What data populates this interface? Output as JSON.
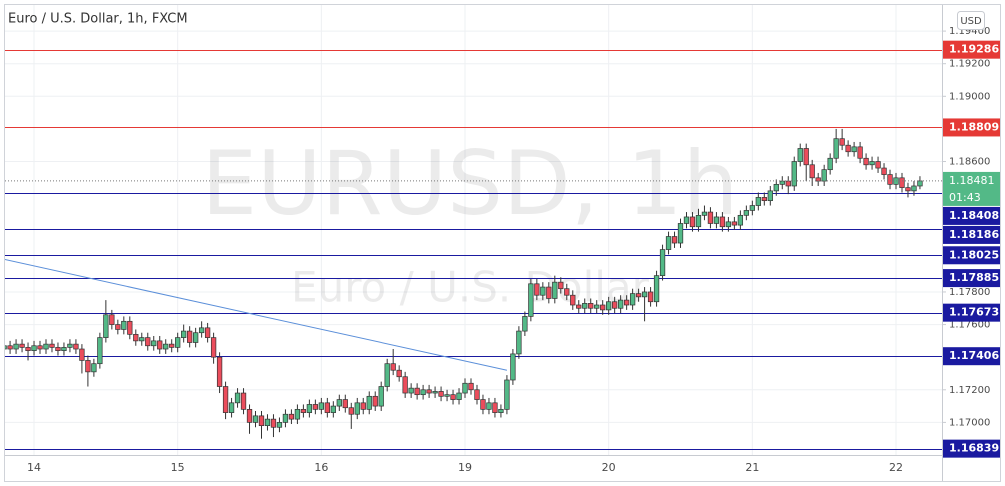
{
  "chart_data": {
    "type": "candlestick",
    "title": "Euro / U.S. Dollar, 1h, FXCM",
    "watermark": "EURUSD, 1h",
    "watermark_subtitle": "Euro / U.S. Dollar",
    "currency": "USD",
    "countdown": "01:43",
    "categories": [
      null,
      null,
      null,
      null,
      null,
      "14",
      null,
      null,
      null,
      null,
      null,
      null,
      null,
      null,
      null,
      null,
      null,
      null,
      null,
      null,
      null,
      null,
      null,
      null,
      null,
      null,
      null,
      null,
      null,
      "15",
      null,
      null,
      null,
      null,
      null,
      null,
      null,
      null,
      null,
      null,
      null,
      null,
      null,
      null,
      null,
      null,
      null,
      null,
      null,
      null,
      null,
      null,
      null,
      "16",
      null,
      null,
      null,
      null,
      null,
      null,
      null,
      null,
      null,
      null,
      null,
      null,
      null,
      null,
      null,
      null,
      null,
      null,
      null,
      null,
      null,
      null,
      null,
      "19",
      null,
      null,
      null,
      null,
      null,
      null,
      null,
      null,
      null,
      null,
      null,
      null,
      null,
      null,
      null,
      null,
      null,
      null,
      null,
      null,
      null,
      null,
      null,
      "20",
      null,
      null,
      null,
      null,
      null,
      null,
      null,
      null,
      null,
      null,
      null,
      null,
      null,
      null,
      null,
      null,
      null,
      null,
      null,
      null,
      null,
      null,
      null,
      "21",
      null,
      null,
      null,
      null,
      null,
      null,
      null,
      null,
      null,
      null,
      null,
      null,
      null,
      null,
      null,
      null,
      null,
      null,
      null,
      null,
      null,
      null,
      null,
      "22",
      null,
      null,
      null,
      null
    ],
    "open": [
      1.1745,
      1.1747,
      1.1745,
      1.1748,
      1.1746,
      1.1744,
      1.1747,
      1.1745,
      1.1748,
      1.1746,
      1.1744,
      1.1746,
      1.1748,
      1.1745,
      1.1738,
      1.1731,
      1.1736,
      1.1752,
      1.1766,
      1.176,
      1.1757,
      1.1762,
      1.1754,
      1.175,
      1.1752,
      1.1747,
      1.175,
      1.1745,
      1.1748,
      1.1746,
      1.1752,
      1.1756,
      1.1749,
      1.1755,
      1.1758,
      1.1752,
      1.174,
      1.1722,
      1.1706,
      1.1712,
      1.1718,
      1.1708,
      1.17,
      1.1704,
      1.1698,
      1.1702,
      1.1697,
      1.17,
      1.1705,
      1.1702,
      1.1708,
      1.1706,
      1.1711,
      1.1708,
      1.1712,
      1.1706,
      1.171,
      1.1714,
      1.1709,
      1.1705,
      1.1712,
      1.1708,
      1.1716,
      1.171,
      1.1722,
      1.1736,
      1.1732,
      1.1728,
      1.1718,
      1.1721,
      1.1717,
      1.172,
      1.1718,
      1.1719,
      1.1716,
      1.1717,
      1.1714,
      1.1718,
      1.1724,
      1.172,
      1.1714,
      1.1708,
      1.1712,
      1.1706,
      1.1708,
      1.1726,
      1.1742,
      1.1756,
      1.1765,
      1.1785,
      1.1778,
      1.1783,
      1.1776,
      1.1786,
      1.1782,
      1.1778,
      1.1772,
      1.177,
      1.1773,
      1.177,
      1.1772,
      1.1769,
      1.1774,
      1.177,
      1.1775,
      1.1772,
      1.1779,
      1.1777,
      1.178,
      1.1774,
      1.179,
      1.1806,
      1.1814,
      1.181,
      1.1822,
      1.1826,
      1.182,
      1.1827,
      1.1829,
      1.1822,
      1.1826,
      1.182,
      1.1823,
      1.1821,
      1.1827,
      1.183,
      1.1833,
      1.1838,
      1.1836,
      1.1842,
      1.1846,
      1.1848,
      1.1845,
      1.186,
      1.1868,
      1.1858,
      1.185,
      1.1848,
      1.1855,
      1.1862,
      1.1874,
      1.187,
      1.1866,
      1.1869,
      1.1862,
      1.1858,
      1.186,
      1.1856,
      1.1852,
      1.1846,
      1.185,
      1.1844,
      1.1842,
      1.1845
    ],
    "high": [
      1.175,
      1.175,
      1.1751,
      1.1751,
      1.1749,
      1.175,
      1.175,
      1.1751,
      1.1751,
      1.1749,
      1.1749,
      1.1751,
      1.1751,
      1.1748,
      1.1741,
      1.1739,
      1.1755,
      1.1775,
      1.1769,
      1.1763,
      1.1765,
      1.1765,
      1.1757,
      1.1755,
      1.1755,
      1.1753,
      1.1753,
      1.1751,
      1.1751,
      1.1755,
      1.176,
      1.1759,
      1.1758,
      1.1762,
      1.1761,
      1.1755,
      1.1743,
      1.1725,
      1.1715,
      1.1721,
      1.1721,
      1.1711,
      1.1707,
      1.1707,
      1.1705,
      1.1705,
      1.1703,
      1.1708,
      1.1708,
      1.1711,
      1.1711,
      1.1714,
      1.1714,
      1.1715,
      1.1715,
      1.1713,
      1.1717,
      1.1717,
      1.1712,
      1.1715,
      1.1715,
      1.1719,
      1.1719,
      1.1725,
      1.1739,
      1.1745,
      1.1735,
      1.1731,
      1.1724,
      1.1724,
      1.1723,
      1.1723,
      1.1722,
      1.1722,
      1.172,
      1.172,
      1.1721,
      1.1727,
      1.1727,
      1.1723,
      1.1717,
      1.1715,
      1.1715,
      1.1711,
      1.1729,
      1.1745,
      1.1759,
      1.1768,
      1.1788,
      1.1788,
      1.1786,
      1.1786,
      1.179,
      1.1789,
      1.1785,
      1.1781,
      1.1775,
      1.1776,
      1.1776,
      1.1775,
      1.1775,
      1.1777,
      1.1777,
      1.1778,
      1.1778,
      1.1782,
      1.1782,
      1.1783,
      1.1783,
      1.1793,
      1.1809,
      1.1817,
      1.1817,
      1.1825,
      1.1829,
      1.1829,
      1.1831,
      1.1833,
      1.1832,
      1.1829,
      1.1829,
      1.1826,
      1.1826,
      1.183,
      1.1833,
      1.1836,
      1.1841,
      1.1841,
      1.1845,
      1.1849,
      1.1851,
      1.1851,
      1.1863,
      1.1871,
      1.1871,
      1.1861,
      1.1853,
      1.1858,
      1.1865,
      1.188,
      1.188,
      1.1873,
      1.1872,
      1.1872,
      1.1865,
      1.1863,
      1.1863,
      1.1859,
      1.1855,
      1.1853,
      1.1853,
      1.1847,
      1.1848,
      1.1851
    ],
    "low": [
      1.1742,
      1.1742,
      1.1742,
      1.1743,
      1.1738,
      1.1741,
      1.1742,
      1.1742,
      1.1743,
      1.1741,
      1.1741,
      1.1743,
      1.1742,
      1.173,
      1.1722,
      1.1728,
      1.1733,
      1.1749,
      1.1757,
      1.1754,
      1.1754,
      1.1751,
      1.1747,
      1.1747,
      1.1744,
      1.1744,
      1.1742,
      1.1742,
      1.1743,
      1.1743,
      1.1749,
      1.1746,
      1.1746,
      1.1752,
      1.1749,
      1.1736,
      1.1718,
      1.1702,
      1.1703,
      1.1709,
      1.1705,
      1.1693,
      1.1697,
      1.169,
      1.1695,
      1.1691,
      1.1694,
      1.1697,
      1.1699,
      1.1699,
      1.1703,
      1.1703,
      1.1705,
      1.1705,
      1.1703,
      1.1703,
      1.1707,
      1.1706,
      1.1696,
      1.1702,
      1.1705,
      1.1705,
      1.1707,
      1.1707,
      1.1719,
      1.1729,
      1.1725,
      1.1715,
      1.1715,
      1.1714,
      1.1714,
      1.1715,
      1.1715,
      1.1713,
      1.1713,
      1.1711,
      1.1711,
      1.1715,
      1.1717,
      1.1711,
      1.1705,
      1.1705,
      1.1703,
      1.1703,
      1.1705,
      1.1723,
      1.1739,
      1.1753,
      1.1762,
      1.1775,
      1.1775,
      1.1773,
      1.1773,
      1.1779,
      1.1775,
      1.1769,
      1.1767,
      1.1767,
      1.1767,
      1.1767,
      1.1766,
      1.1766,
      1.1767,
      1.1767,
      1.1769,
      1.1769,
      1.1774,
      1.1762,
      1.1771,
      1.1771,
      1.1787,
      1.1803,
      1.1807,
      1.1807,
      1.1819,
      1.1817,
      1.1817,
      1.1824,
      1.1819,
      1.1819,
      1.1817,
      1.1817,
      1.1818,
      1.1818,
      1.1824,
      1.1827,
      1.183,
      1.1833,
      1.1833,
      1.1839,
      1.1843,
      1.184,
      1.1842,
      1.1857,
      1.1848,
      1.1845,
      1.1845,
      1.1845,
      1.1852,
      1.1859,
      1.1867,
      1.1863,
      1.1863,
      1.1859,
      1.1855,
      1.1855,
      1.1853,
      1.1849,
      1.1843,
      1.1843,
      1.1841,
      1.1838,
      1.1839,
      1.1843
    ],
    "close": [
      1.1747,
      1.1745,
      1.1748,
      1.1746,
      1.1744,
      1.1747,
      1.1745,
      1.1748,
      1.1746,
      1.1744,
      1.1746,
      1.1748,
      1.1745,
      1.1738,
      1.1731,
      1.1736,
      1.1752,
      1.1766,
      1.176,
      1.1757,
      1.1762,
      1.1754,
      1.175,
      1.1752,
      1.1747,
      1.175,
      1.1745,
      1.1748,
      1.1746,
      1.1752,
      1.1756,
      1.1749,
      1.1755,
      1.1758,
      1.1752,
      1.174,
      1.1722,
      1.1706,
      1.1712,
      1.1718,
      1.1708,
      1.17,
      1.1704,
      1.1698,
      1.1702,
      1.1697,
      1.17,
      1.1705,
      1.1702,
      1.1708,
      1.1706,
      1.1711,
      1.1708,
      1.1712,
      1.1706,
      1.171,
      1.1714,
      1.1709,
      1.1705,
      1.1712,
      1.1708,
      1.1716,
      1.171,
      1.1722,
      1.1736,
      1.1732,
      1.1728,
      1.1718,
      1.1721,
      1.1717,
      1.172,
      1.1718,
      1.1719,
      1.1716,
      1.1717,
      1.1714,
      1.1718,
      1.1724,
      1.172,
      1.1714,
      1.1708,
      1.1712,
      1.1706,
      1.1708,
      1.1726,
      1.1742,
      1.1756,
      1.1765,
      1.1785,
      1.1778,
      1.1783,
      1.1776,
      1.1786,
      1.1782,
      1.1778,
      1.1772,
      1.177,
      1.1773,
      1.177,
      1.1772,
      1.1769,
      1.1774,
      1.177,
      1.1775,
      1.1772,
      1.1779,
      1.1777,
      1.178,
      1.1774,
      1.179,
      1.1806,
      1.1814,
      1.181,
      1.1822,
      1.1826,
      1.182,
      1.1827,
      1.1829,
      1.1822,
      1.1826,
      1.182,
      1.1823,
      1.1821,
      1.1827,
      1.183,
      1.1833,
      1.1838,
      1.1836,
      1.1842,
      1.1846,
      1.1848,
      1.1845,
      1.186,
      1.1868,
      1.1858,
      1.185,
      1.1848,
      1.1855,
      1.1862,
      1.1874,
      1.187,
      1.1866,
      1.1869,
      1.1862,
      1.1858,
      1.186,
      1.1856,
      1.1852,
      1.1846,
      1.185,
      1.1844,
      1.1842,
      1.1845,
      1.18481
    ],
    "up_color": "#53b987",
    "down_color": "#eb4d5c",
    "ylim": [
      1.168,
      1.1956
    ],
    "yticks": [
      {
        "value": 1.194,
        "label": "1.19400"
      },
      {
        "value": 1.192,
        "label": "1.19200"
      },
      {
        "value": 1.19,
        "label": "1.19000"
      },
      {
        "value": 1.186,
        "label": "1.18600"
      },
      {
        "value": 1.178,
        "label": "1.17800"
      },
      {
        "value": 1.176,
        "label": "1.17600"
      },
      {
        "value": 1.172,
        "label": "1.17200"
      },
      {
        "value": 1.17,
        "label": "1.17000"
      }
    ],
    "levels": [
      {
        "value": 1.19286,
        "color": "#e53935"
      },
      {
        "value": 1.18809,
        "color": "#e53935"
      },
      {
        "value": 1.18408,
        "color": "#1a1aa0"
      },
      {
        "value": 1.18186,
        "color": "#1a1aa0"
      },
      {
        "value": 1.18025,
        "color": "#1a1aa0"
      },
      {
        "value": 1.17885,
        "color": "#1a1aa0"
      },
      {
        "value": 1.17673,
        "color": "#1a1aa0"
      },
      {
        "value": 1.17406,
        "color": "#1a1aa0"
      },
      {
        "value": 1.16839,
        "color": "#1a1aa0"
      }
    ],
    "trendline": {
      "x": [
        0,
        84
      ],
      "y": [
        1.18,
        1.1732
      ],
      "color": "#5b8fd9"
    },
    "grid": true
  }
}
